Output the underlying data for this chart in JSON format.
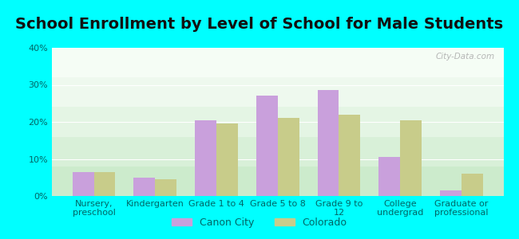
{
  "title": "School Enrollment by Level of School for Male Students",
  "categories": [
    "Nursery,\npreschool",
    "Kindergarten",
    "Grade 1 to 4",
    "Grade 5 to 8",
    "Grade 9 to\n12",
    "College\nundergrad",
    "Graduate or\nprofessional"
  ],
  "canon_city": [
    6.5,
    5.0,
    20.5,
    27.0,
    28.5,
    10.5,
    1.5
  ],
  "colorado": [
    6.5,
    4.5,
    19.5,
    21.0,
    22.0,
    20.5,
    6.0
  ],
  "canon_city_color": "#c9a0dc",
  "colorado_color": "#c8cc8a",
  "background_outer": "#00ffff",
  "ylim": [
    0,
    40
  ],
  "yticks": [
    0,
    10,
    20,
    30,
    40
  ],
  "bar_width": 0.35,
  "title_fontsize": 14,
  "tick_fontsize": 8,
  "legend_labels": [
    "Canon City",
    "Colorado"
  ],
  "watermark": "City-Data.com"
}
